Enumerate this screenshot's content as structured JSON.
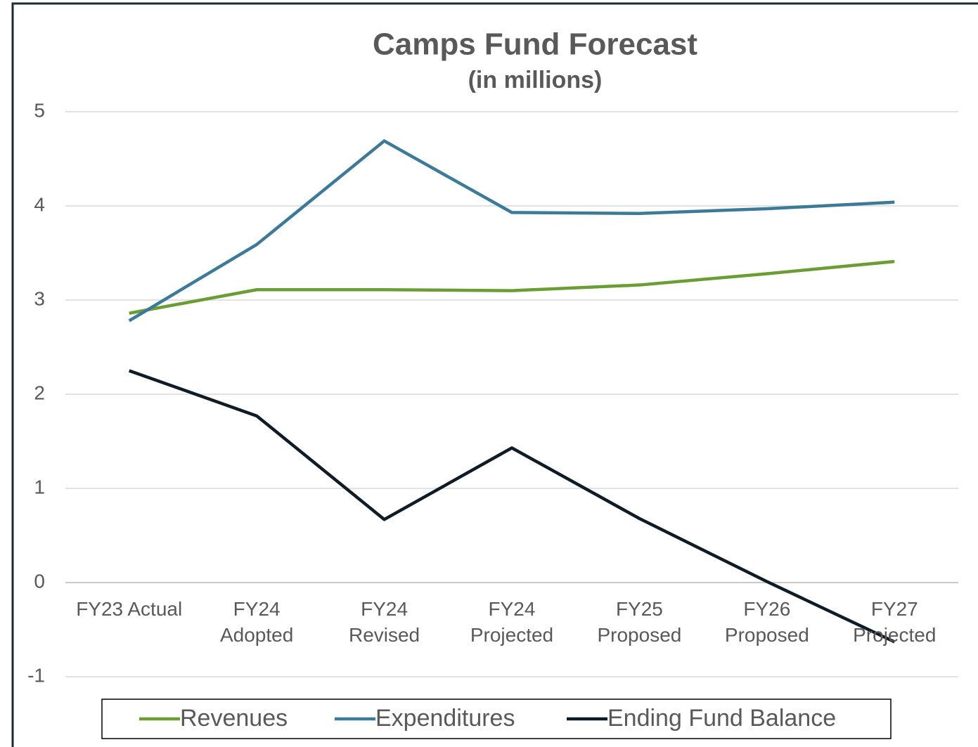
{
  "chart_data": {
    "type": "line",
    "title": "Camps Fund Forecast",
    "subtitle": "(in millions)",
    "categories": [
      "FY23 Actual",
      "FY24 Adopted",
      "FY24 Revised",
      "FY24 Projected",
      "FY25 Proposed",
      "FY26 Proposed",
      "FY27 Projected"
    ],
    "series": [
      {
        "name": "Revenues",
        "color": "#6a9e34",
        "values": [
          2.86,
          3.11,
          3.11,
          3.1,
          3.16,
          3.28,
          3.41
        ]
      },
      {
        "name": "Expenditures",
        "color": "#3d7a9a",
        "values": [
          2.78,
          3.59,
          4.69,
          3.93,
          3.92,
          3.97,
          4.04
        ]
      },
      {
        "name": "Ending Fund Balance",
        "color": "#0f1c26",
        "values": [
          2.25,
          1.77,
          0.67,
          1.43,
          0.68,
          0.01,
          -0.63
        ]
      }
    ],
    "ylim": [
      -1,
      5
    ],
    "yticks": [
      -1,
      0,
      1,
      2,
      3,
      4,
      5
    ],
    "grid": true,
    "legend": "bottom"
  }
}
